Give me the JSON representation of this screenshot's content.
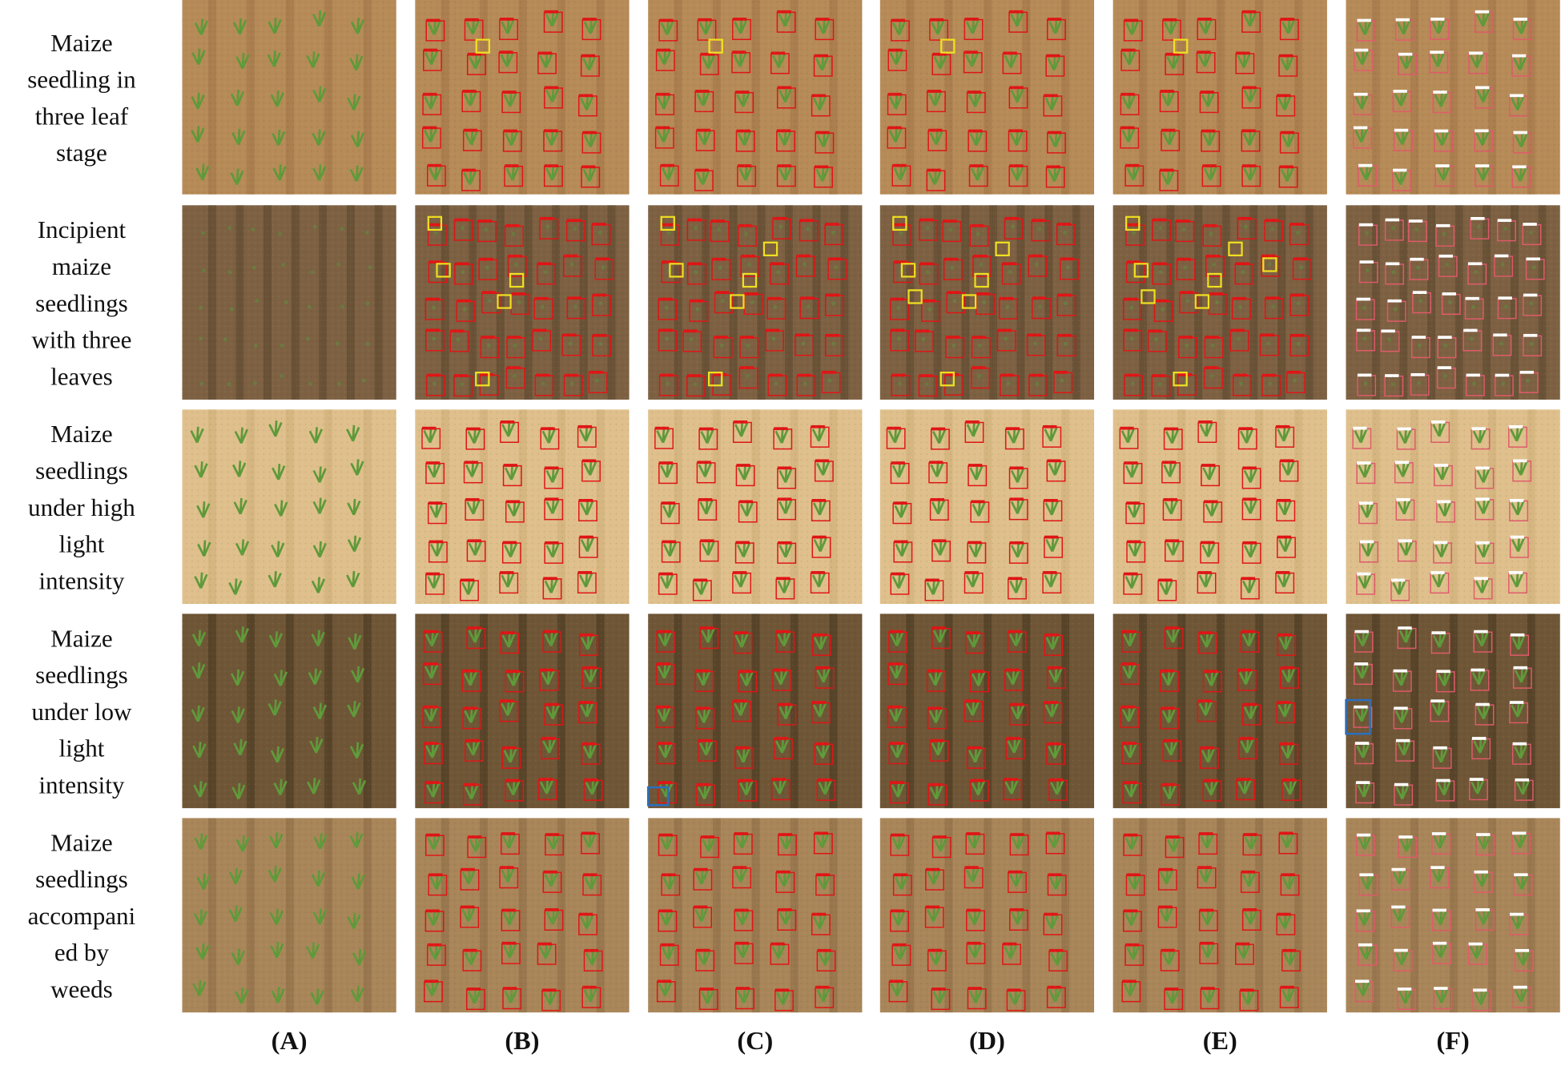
{
  "figure": {
    "row_labels": [
      [
        "Maize",
        "seedling in",
        "three leaf",
        "stage"
      ],
      [
        "Incipient",
        "maize",
        "seedlings",
        "with three",
        "leaves"
      ],
      [
        "Maize",
        "seedlings",
        "under high",
        "light",
        "intensity"
      ],
      [
        "Maize",
        "seedlings",
        "under low",
        "light",
        "intensity"
      ],
      [
        "Maize",
        "seedlings",
        "accompani",
        "ed by",
        "weeds"
      ]
    ],
    "column_labels": [
      "(A)",
      "(B)",
      "(C)",
      "(D)",
      "(E)",
      "(F)"
    ]
  }
}
